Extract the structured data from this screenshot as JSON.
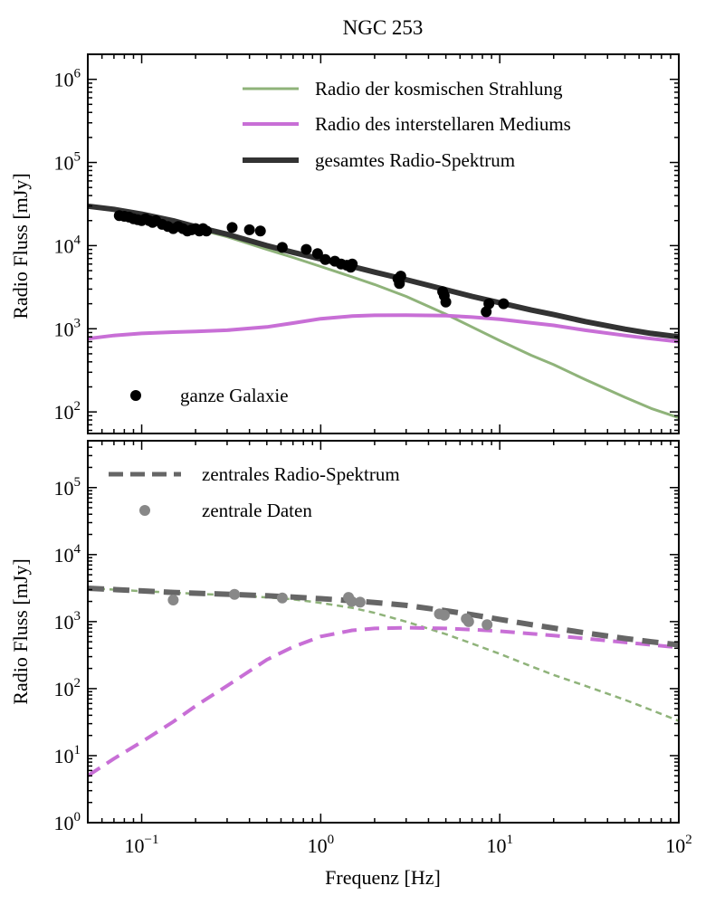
{
  "chart_data": [
    {
      "type": "line",
      "title": "NGC 253",
      "xlabel": "",
      "ylabel": "Radio Fluss [mJy]",
      "xscale": "log",
      "yscale": "log",
      "xlim": [
        0.05,
        100
      ],
      "ylim": [
        55,
        2000000
      ],
      "grid": false,
      "legend_position": "top-right",
      "y_ticks": [
        {
          "base": "10",
          "exp": "2",
          "value": 100
        },
        {
          "base": "10",
          "exp": "3",
          "value": 1000
        },
        {
          "base": "10",
          "exp": "4",
          "value": 10000
        },
        {
          "base": "10",
          "exp": "5",
          "value": 100000
        },
        {
          "base": "10",
          "exp": "6",
          "value": 1000000
        }
      ],
      "series": [
        {
          "name": "Radio der kosmischen Strahlung",
          "style": "solid",
          "color": "#8fb37a",
          "x": [
            0.05,
            0.07,
            0.1,
            0.15,
            0.2,
            0.3,
            0.5,
            0.7,
            1,
            1.5,
            2,
            3,
            5,
            7,
            10,
            15,
            20,
            30,
            50,
            70,
            100
          ],
          "y": [
            29000,
            26500,
            23000,
            19000,
            16000,
            12800,
            9000,
            7200,
            5600,
            4200,
            3400,
            2450,
            1500,
            1050,
            720,
            480,
            370,
            245,
            150,
            110,
            85
          ]
        },
        {
          "name": "Radio des interstellaren Mediums",
          "style": "solid",
          "color": "#c86fd6",
          "x": [
            0.05,
            0.07,
            0.1,
            0.15,
            0.2,
            0.3,
            0.5,
            0.7,
            1,
            1.5,
            2,
            3,
            5,
            7,
            10,
            15,
            20,
            30,
            50,
            70,
            100
          ],
          "y": [
            760,
            830,
            880,
            910,
            930,
            960,
            1050,
            1170,
            1320,
            1420,
            1450,
            1460,
            1440,
            1380,
            1300,
            1180,
            1100,
            960,
            830,
            760,
            700
          ]
        },
        {
          "name": "gesamtes Radio-Spektrum",
          "style": "solid",
          "color": "#333333",
          "x": [
            0.05,
            0.07,
            0.1,
            0.15,
            0.2,
            0.3,
            0.5,
            0.7,
            1,
            1.5,
            2,
            3,
            5,
            7,
            10,
            15,
            20,
            30,
            50,
            70,
            100
          ],
          "y": [
            29800,
            27300,
            23900,
            19900,
            16900,
            13700,
            10000,
            8300,
            6900,
            5600,
            4800,
            3900,
            2950,
            2450,
            2050,
            1680,
            1480,
            1220,
            990,
            880,
            800
          ]
        },
        {
          "name": "ganze Galaxie",
          "style": "points",
          "color": "#000000",
          "x": [
            0.075,
            0.08,
            0.085,
            0.09,
            0.095,
            0.1,
            0.105,
            0.11,
            0.115,
            0.12,
            0.13,
            0.14,
            0.15,
            0.16,
            0.17,
            0.18,
            0.19,
            0.2,
            0.21,
            0.22,
            0.23,
            0.32,
            0.4,
            0.46,
            0.61,
            0.83,
            0.96,
            1.06,
            1.2,
            1.3,
            1.4,
            1.47,
            1.5,
            2.7,
            2.75,
            2.8,
            4.8,
            4.9,
            5.0,
            8.4,
            8.7,
            10.5
          ],
          "y": [
            23000,
            22500,
            22000,
            21000,
            20500,
            20000,
            21000,
            20000,
            19000,
            20000,
            18000,
            17000,
            16000,
            17000,
            16000,
            15000,
            15500,
            16000,
            15000,
            16000,
            15000,
            16500,
            15500,
            15000,
            9500,
            9000,
            8000,
            6800,
            6500,
            6000,
            5800,
            5500,
            6000,
            4000,
            3500,
            4300,
            2800,
            2500,
            2100,
            1600,
            2000,
            2000
          ]
        }
      ]
    },
    {
      "type": "line",
      "title": "",
      "xlabel": "Frequenz [Hz]",
      "ylabel": "Radio Fluss [mJy]",
      "xscale": "log",
      "yscale": "log",
      "xlim": [
        0.05,
        100
      ],
      "ylim": [
        1,
        500000
      ],
      "grid": false,
      "legend_position": "top-left",
      "x_ticks": [
        {
          "base": "10",
          "exp": "−1",
          "value": 0.1
        },
        {
          "base": "10",
          "exp": "0",
          "value": 1
        },
        {
          "base": "10",
          "exp": "1",
          "value": 10
        },
        {
          "base": "10",
          "exp": "2",
          "value": 100
        }
      ],
      "y_ticks": [
        {
          "base": "10",
          "exp": "0",
          "value": 1
        },
        {
          "base": "10",
          "exp": "1",
          "value": 10
        },
        {
          "base": "10",
          "exp": "2",
          "value": 100
        },
        {
          "base": "10",
          "exp": "3",
          "value": 1000
        },
        {
          "base": "10",
          "exp": "4",
          "value": 10000
        },
        {
          "base": "10",
          "exp": "5",
          "value": 100000
        }
      ],
      "series": [
        {
          "name": "",
          "style": "dashed-thin",
          "color": "#8fb37a",
          "x": [
            0.05,
            0.07,
            0.1,
            0.15,
            0.2,
            0.3,
            0.5,
            0.7,
            1,
            1.5,
            2,
            3,
            5,
            7,
            10,
            15,
            20,
            30,
            50,
            70,
            100
          ],
          "y": [
            3150,
            3000,
            2850,
            2700,
            2600,
            2500,
            2300,
            2150,
            1900,
            1600,
            1350,
            1000,
            650,
            470,
            330,
            215,
            160,
            110,
            68,
            48,
            33
          ]
        },
        {
          "name": "",
          "style": "dashed",
          "color": "#c86fd6",
          "x": [
            0.05,
            0.07,
            0.1,
            0.15,
            0.2,
            0.3,
            0.5,
            0.7,
            1,
            1.5,
            2,
            3,
            5,
            7,
            10,
            15,
            20,
            30,
            50,
            70,
            100
          ],
          "y": [
            5,
            9,
            16,
            32,
            55,
            110,
            270,
            420,
            600,
            740,
            790,
            810,
            790,
            760,
            720,
            660,
            620,
            560,
            490,
            450,
            410
          ]
        },
        {
          "name": "zentrales Radio-Spektrum",
          "style": "dashed",
          "color": "#666666",
          "x": [
            0.05,
            0.07,
            0.1,
            0.15,
            0.2,
            0.3,
            0.5,
            0.7,
            1,
            1.5,
            2,
            3,
            5,
            7,
            10,
            15,
            20,
            30,
            50,
            70,
            100
          ],
          "y": [
            3150,
            3010,
            2870,
            2730,
            2650,
            2560,
            2430,
            2320,
            2200,
            2050,
            1930,
            1750,
            1450,
            1270,
            1080,
            900,
            800,
            680,
            560,
            500,
            450
          ]
        },
        {
          "name": "zentrale Daten",
          "style": "points",
          "color": "#888888",
          "x": [
            0.15,
            0.33,
            0.61,
            1.43,
            1.49,
            1.66,
            4.6,
            4.9,
            6.5,
            6.7,
            8.5
          ],
          "y": [
            2100,
            2550,
            2250,
            2300,
            2000,
            1950,
            1300,
            1250,
            1100,
            1000,
            900
          ]
        }
      ]
    }
  ]
}
